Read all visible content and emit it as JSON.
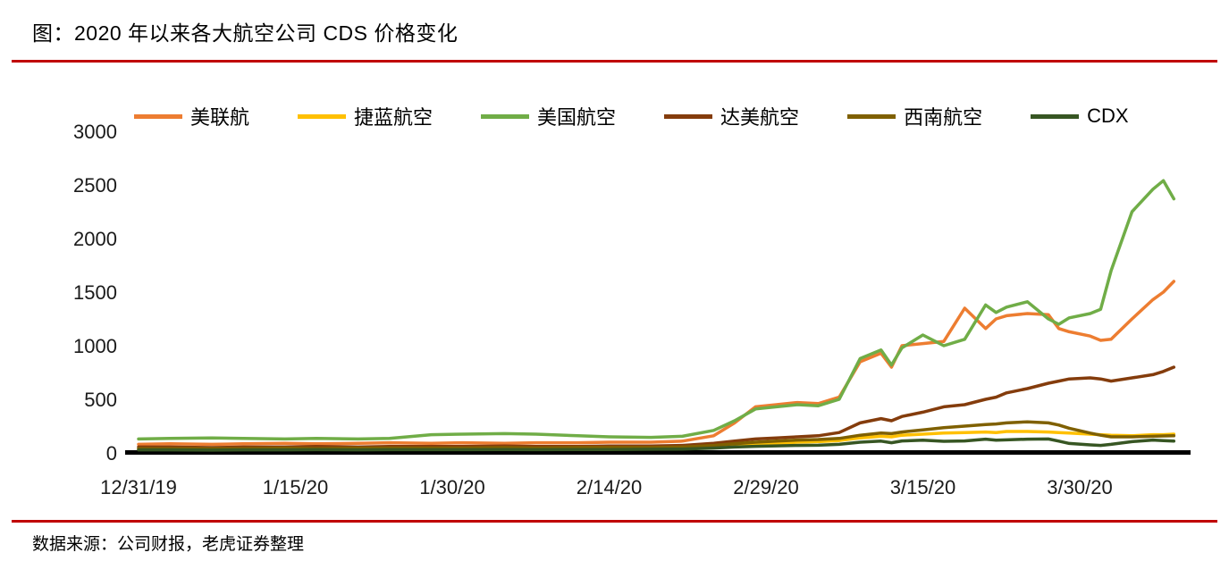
{
  "page": {
    "title": "图：2020 年以来各大航空公司 CDS 价格变化",
    "source_note": "数据来源：公司财报，老虎证券整理",
    "accent_color": "#C00000"
  },
  "chart_data": {
    "type": "line",
    "title": "2020 年以来各大航空公司 CDS 价格变化",
    "xlabel": "",
    "ylabel": "",
    "ylim": [
      0,
      3000
    ],
    "y_ticks": [
      0,
      500,
      1000,
      1500,
      2000,
      2500,
      3000
    ],
    "grid": false,
    "legend_position": "top",
    "x_range_days": [
      0,
      100
    ],
    "x_tick_days": [
      0,
      15,
      30,
      45,
      60,
      75,
      90
    ],
    "x_tick_labels": [
      "12/31/19",
      "1/15/20",
      "1/30/20",
      "2/14/20",
      "2/29/20",
      "3/15/20",
      "3/30/20"
    ],
    "x_days": [
      0,
      3,
      7,
      10,
      14,
      17,
      21,
      24,
      28,
      31,
      35,
      38,
      42,
      45,
      49,
      52,
      55,
      57,
      59,
      61,
      63,
      65,
      67,
      69,
      71,
      72,
      73,
      75,
      77,
      79,
      81,
      82,
      83,
      85,
      87,
      88,
      89,
      91,
      92,
      93,
      95,
      97,
      98,
      99
    ],
    "series": [
      {
        "id": "united-airlines",
        "name": "美联航",
        "color": "#ED7D31",
        "values": [
          80,
          85,
          80,
          85,
          90,
          85,
          90,
          95,
          90,
          95,
          90,
          95,
          95,
          100,
          100,
          110,
          160,
          280,
          430,
          450,
          470,
          460,
          520,
          850,
          930,
          800,
          1000,
          1020,
          1040,
          1350,
          1160,
          1250,
          1280,
          1300,
          1290,
          1160,
          1130,
          1090,
          1050,
          1060,
          1250,
          1430,
          1500,
          1600
        ]
      },
      {
        "id": "jetblue",
        "name": "捷蓝航空",
        "color": "#FFC000",
        "values": [
          35,
          35,
          30,
          35,
          35,
          40,
          35,
          40,
          40,
          40,
          45,
          40,
          45,
          45,
          50,
          55,
          60,
          70,
          80,
          90,
          100,
          105,
          115,
          140,
          155,
          150,
          165,
          175,
          185,
          190,
          195,
          190,
          200,
          200,
          195,
          190,
          185,
          175,
          170,
          165,
          160,
          170,
          170,
          175
        ]
      },
      {
        "id": "american-airlines",
        "name": "美国航空",
        "color": "#70AD47",
        "values": [
          130,
          135,
          140,
          135,
          130,
          135,
          130,
          135,
          170,
          175,
          180,
          175,
          160,
          150,
          145,
          155,
          210,
          300,
          410,
          430,
          450,
          440,
          500,
          880,
          960,
          820,
          980,
          1100,
          1000,
          1060,
          1380,
          1310,
          1360,
          1410,
          1250,
          1200,
          1260,
          1300,
          1340,
          1700,
          2250,
          2460,
          2540,
          2370
        ]
      },
      {
        "id": "delta",
        "name": "达美航空",
        "color": "#843C0C",
        "values": [
          55,
          55,
          50,
          55,
          55,
          60,
          55,
          60,
          60,
          60,
          65,
          60,
          60,
          65,
          65,
          70,
          90,
          110,
          130,
          140,
          150,
          160,
          190,
          280,
          320,
          300,
          340,
          380,
          430,
          450,
          500,
          520,
          560,
          600,
          650,
          670,
          690,
          700,
          690,
          670,
          700,
          730,
          760,
          800
        ]
      },
      {
        "id": "southwest",
        "name": "西南航空",
        "color": "#7F6000",
        "values": [
          40,
          40,
          40,
          40,
          45,
          40,
          45,
          45,
          45,
          45,
          50,
          45,
          50,
          50,
          50,
          55,
          70,
          85,
          100,
          110,
          120,
          125,
          135,
          165,
          185,
          180,
          195,
          215,
          235,
          250,
          265,
          270,
          280,
          290,
          280,
          260,
          230,
          185,
          165,
          150,
          150,
          155,
          158,
          160
        ]
      },
      {
        "id": "cdx",
        "name": "CDX",
        "color": "#375623",
        "values": [
          28,
          28,
          26,
          28,
          28,
          30,
          28,
          30,
          30,
          30,
          32,
          30,
          32,
          32,
          34,
          36,
          45,
          55,
          62,
          66,
          70,
          72,
          80,
          100,
          110,
          95,
          112,
          118,
          108,
          112,
          128,
          118,
          122,
          128,
          130,
          110,
          88,
          75,
          70,
          80,
          105,
          120,
          115,
          110
        ]
      }
    ]
  }
}
